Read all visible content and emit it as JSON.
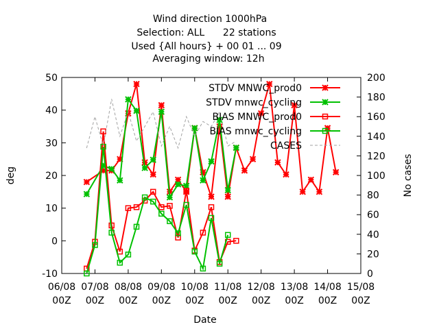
{
  "chart_data": {
    "type": "line",
    "title": [
      "Wind direction 1000hPa",
      "Selection: ALL      22 stations",
      "Used {All hours} + 00 01 ... 09",
      "Averaging window: 12h"
    ],
    "xlabel": "Date",
    "ylabel": "deg",
    "y2label": "No cases",
    "ylim": [
      -10,
      50
    ],
    "y2lim": [
      0,
      200
    ],
    "yticks": [
      -10,
      0,
      10,
      20,
      30,
      40,
      50
    ],
    "y2ticks": [
      0,
      20,
      40,
      60,
      80,
      100,
      120,
      140,
      160,
      180,
      200
    ],
    "x_range_days": [
      0,
      9
    ],
    "x_ticks": [
      {
        "day": 0,
        "line1": "06/08",
        "line2": "00Z"
      },
      {
        "day": 1,
        "line1": "07/08",
        "line2": "00Z"
      },
      {
        "day": 2,
        "line1": "08/08",
        "line2": "00Z"
      },
      {
        "day": 3,
        "line1": "09/08",
        "line2": "00Z"
      },
      {
        "day": 4,
        "line1": "10/08",
        "line2": "00Z"
      },
      {
        "day": 5,
        "line1": "11/08",
        "line2": "00Z"
      },
      {
        "day": 6,
        "line1": "12/08",
        "line2": "00Z"
      },
      {
        "day": 7,
        "line1": "13/08",
        "line2": "00Z"
      },
      {
        "day": 8,
        "line1": "14/08",
        "line2": "00Z"
      },
      {
        "day": 9,
        "line1": "15/08",
        "line2": "00Z"
      }
    ],
    "x": [
      0.75,
      1.0,
      1.25,
      1.5,
      1.75,
      2.0,
      2.25,
      2.5,
      2.75,
      3.0,
      3.25,
      3.5,
      3.75,
      4.0,
      4.25,
      4.5,
      4.75,
      5.0,
      5.25,
      5.5,
      5.75,
      6.0,
      6.25,
      6.5,
      6.75,
      7.0,
      7.25,
      7.5,
      7.75,
      8.0,
      8.25,
      8.5,
      8.75,
      9.0
    ],
    "grid": false,
    "legend_position": "top-right",
    "series": [
      {
        "name": "STDV MNWC_prod0",
        "color": "#ff0000",
        "marker": "star",
        "axis": "y1",
        "x": [
          0.75,
          1.25,
          1.5,
          1.75,
          2.0,
          2.25,
          2.5,
          2.75,
          3.0,
          3.25,
          3.5,
          3.75,
          4.0,
          4.25,
          4.5,
          4.75,
          5.0,
          5.25,
          5.5,
          5.75,
          6.0,
          6.25,
          6.5,
          6.75,
          7.0,
          7.25,
          7.5,
          7.75,
          8.0,
          8.25
        ],
        "values": [
          18,
          21.5,
          21.5,
          25,
          39,
          48,
          24,
          20.3,
          41.5,
          15,
          18.7,
          15,
          34.5,
          21,
          13.5,
          35,
          13.5,
          28.5,
          21.5,
          25,
          39,
          48,
          24,
          20.3,
          41.5,
          15,
          18.7,
          15,
          34.5,
          21
        ]
      },
      {
        "name": "STDV mnwc_cycling",
        "color": "#00c000",
        "marker": "star",
        "axis": "y1",
        "x": [
          0.75,
          1.25,
          1.5,
          1.75,
          2.0,
          2.25,
          2.5,
          2.75,
          3.0,
          3.25,
          3.5,
          3.75,
          4.0,
          4.25,
          4.5,
          4.75,
          5.0,
          5.25
        ],
        "values": [
          14.3,
          23,
          22,
          18.5,
          43.3,
          39.8,
          22.3,
          24.8,
          39.5,
          13.3,
          17.3,
          16.8,
          34.5,
          18.5,
          24.3,
          37,
          15.5,
          28.5
        ]
      },
      {
        "name": "BIAS MNWC_prod0",
        "color": "#ff0000",
        "marker": "square",
        "axis": "y1",
        "x": [
          0.75,
          1.0,
          1.25,
          1.5,
          1.75,
          2.0,
          2.25,
          2.5,
          2.75,
          3.0,
          3.25,
          3.5,
          3.75,
          4.0,
          4.25,
          4.5,
          4.75,
          5.0,
          5.25
        ],
        "values": [
          -8.5,
          -0.3,
          33.5,
          4.7,
          -3.3,
          10,
          10.3,
          12.3,
          15,
          10.3,
          10.7,
          1,
          15.3,
          -3,
          2.5,
          10.3,
          -6.5,
          -0.3,
          0
        ]
      },
      {
        "name": "BIAS mnwc_cycling",
        "color": "#00c000",
        "marker": "square",
        "axis": "y1",
        "x": [
          0.75,
          1.0,
          1.25,
          1.5,
          1.75,
          2.0,
          2.25,
          2.5,
          2.75,
          3.0,
          3.25,
          3.5,
          3.75,
          4.0,
          4.25,
          4.5,
          4.75,
          5.0
        ],
        "values": [
          -10,
          -1.3,
          28.8,
          2.5,
          -6.7,
          -4.2,
          4.3,
          13.3,
          12,
          8.3,
          6,
          2.3,
          11,
          -3.3,
          -8.5,
          7,
          -7,
          1.8
        ]
      },
      {
        "name": "CASES",
        "color": "#a0a0a0",
        "marker": "none",
        "dash": true,
        "axis": "y2",
        "x": [
          0.75,
          1.0,
          1.25,
          1.5,
          1.75,
          2.0,
          2.25,
          2.5,
          2.75,
          3.0,
          3.25,
          3.5,
          3.75,
          4.0,
          4.25,
          4.5,
          4.75,
          5.0,
          5.25
        ],
        "values": [
          128,
          160,
          130,
          178,
          140,
          165,
          135,
          150,
          165,
          130,
          150,
          128,
          160,
          140,
          155,
          150,
          165,
          130,
          135
        ]
      }
    ]
  }
}
